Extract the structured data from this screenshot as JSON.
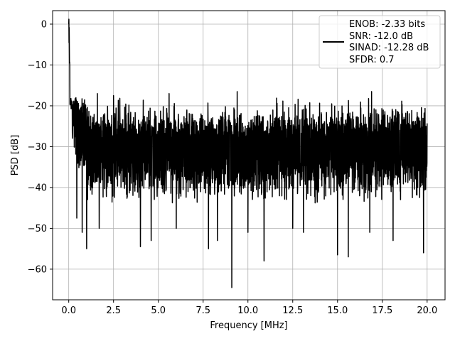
{
  "chart_data": {
    "type": "line",
    "xlabel": "Frequency [MHz]",
    "ylabel": "PSD [dB]",
    "xlim": [
      -0.9,
      21.0
    ],
    "ylim": [
      -67.5,
      3.3
    ],
    "xticks": [
      0.0,
      2.5,
      5.0,
      7.5,
      10.0,
      12.5,
      15.0,
      17.5,
      20.0
    ],
    "xtick_labels": [
      "0.0",
      "2.5",
      "5.0",
      "7.5",
      "10.0",
      "12.5",
      "15.0",
      "17.5",
      "20.0"
    ],
    "yticks": [
      0,
      -10,
      -20,
      -30,
      -40,
      -50,
      -60
    ],
    "ytick_labels": [
      "0",
      "−10",
      "−20",
      "−30",
      "−40",
      "−50",
      "−60"
    ],
    "grid": true,
    "legend_position": "top-right",
    "legend_entries": [
      "ENOB: -2.33 bits",
      "SNR: -12.0 dB",
      "SINAD: -12.28 dB",
      "SFDR: 0.7"
    ],
    "series_color": "#000000",
    "series": [
      {
        "x_range": [
          0.0,
          20.0
        ],
        "noise_floor_db": -30,
        "upper_envelope_db": -20,
        "lower_envelope_db": -40,
        "peak": {
          "x": 0.0,
          "y": 0.0
        },
        "low_frequency_decay": [
          {
            "x": 0.0,
            "y": 0.0
          },
          {
            "x": 0.05,
            "y": -10
          },
          {
            "x": 0.15,
            "y": -15
          },
          {
            "x": 0.3,
            "y": -20
          },
          {
            "x": 0.5,
            "y": -25
          },
          {
            "x": 1.0,
            "y": -28
          }
        ],
        "notable_minima": [
          {
            "x": 0.45,
            "y": -47.5
          },
          {
            "x": 0.75,
            "y": -51
          },
          {
            "x": 1.0,
            "y": -55
          },
          {
            "x": 1.7,
            "y": -50
          },
          {
            "x": 2.5,
            "y": -48
          },
          {
            "x": 4.0,
            "y": -54.5
          },
          {
            "x": 4.6,
            "y": -53
          },
          {
            "x": 6.0,
            "y": -50
          },
          {
            "x": 7.8,
            "y": -55
          },
          {
            "x": 8.3,
            "y": -53
          },
          {
            "x": 9.1,
            "y": -64.5
          },
          {
            "x": 10.0,
            "y": -51
          },
          {
            "x": 10.9,
            "y": -58
          },
          {
            "x": 12.5,
            "y": -50
          },
          {
            "x": 13.1,
            "y": -51
          },
          {
            "x": 15.0,
            "y": -56.5
          },
          {
            "x": 15.6,
            "y": -57
          },
          {
            "x": 16.8,
            "y": -51
          },
          {
            "x": 18.1,
            "y": -53
          },
          {
            "x": 19.8,
            "y": -56
          }
        ],
        "notable_maxima": [
          {
            "x": 0.4,
            "y": -18
          },
          {
            "x": 1.6,
            "y": -17
          },
          {
            "x": 2.5,
            "y": -17.5
          },
          {
            "x": 5.6,
            "y": -17
          },
          {
            "x": 9.4,
            "y": -16.5
          },
          {
            "x": 16.9,
            "y": -16.5
          }
        ]
      }
    ]
  }
}
